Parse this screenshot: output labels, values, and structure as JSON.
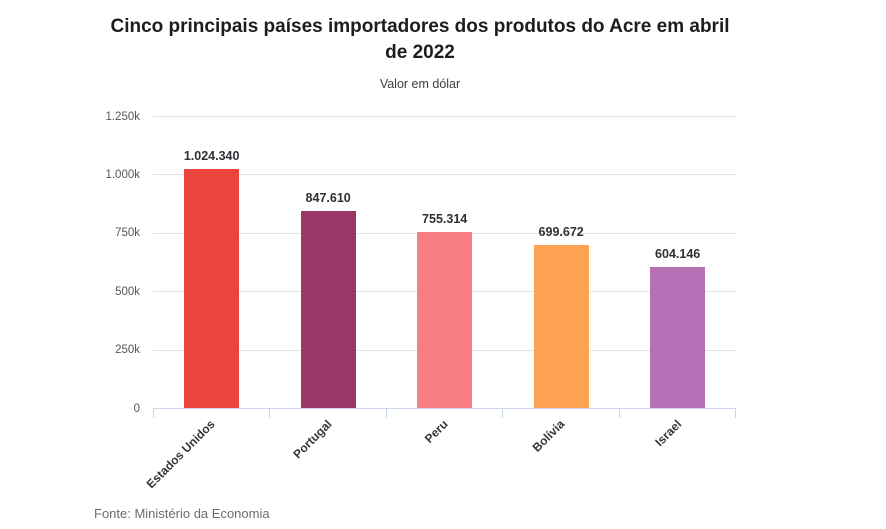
{
  "chart_data": {
    "type": "bar",
    "title": "Cinco principais países importadores dos produtos do Acre em abril de 2022",
    "subtitle": "Valor em dólar",
    "source": "Fonte: Ministério da Economia",
    "categories": [
      "Estados Unidos",
      "Portugal",
      "Peru",
      "Bolívia",
      "Israel"
    ],
    "values": [
      1024340,
      847610,
      755314,
      699672,
      604146
    ],
    "value_labels": [
      "1.024.340",
      "847.610",
      "755.314",
      "699.672",
      "604.146"
    ],
    "bar_colors": [
      "#ea453d",
      "#9a3967",
      "#f97e84",
      "#fda351",
      "#b471b5"
    ],
    "ylabel": "",
    "xlabel": "",
    "ylim": [
      0,
      1250000
    ],
    "y_ticks": [
      {
        "value": 0,
        "label": "0"
      },
      {
        "value": 250000,
        "label": "250k"
      },
      {
        "value": 500000,
        "label": "500k"
      },
      {
        "value": 750000,
        "label": "750k"
      },
      {
        "value": 1000000,
        "label": "1.000k"
      },
      {
        "value": 1250000,
        "label": "1.250k"
      }
    ],
    "legend": "none",
    "grid": "horizontal"
  }
}
